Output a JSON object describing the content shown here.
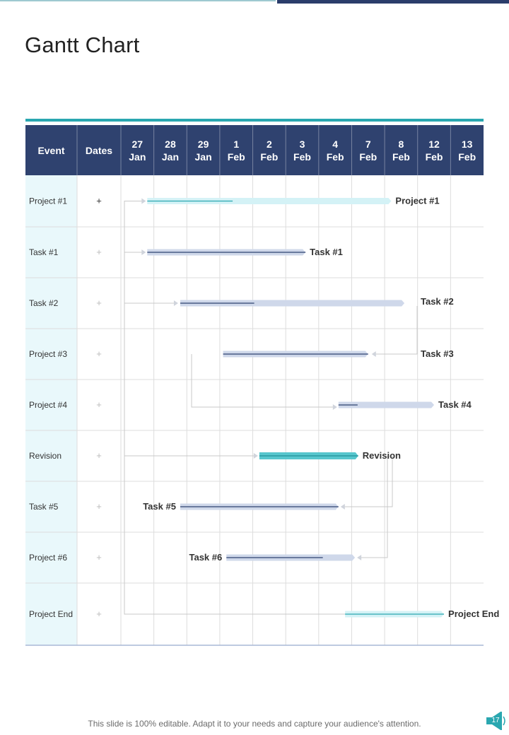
{
  "page": {
    "title": "Gantt Chart",
    "footer": "This slide is 100% editable. Adapt it to your needs and capture your audience's attention.",
    "page_number": "17"
  },
  "colors": {
    "header_bg": "#2f426f",
    "event_col_bg": "#e9f8fb",
    "teal_accent": "#2aa7b0",
    "light_bar": "#cfd8ea",
    "cyan_bar": "#d4f2f6",
    "revision_bar": "#57c6cd",
    "progress_line": "#2f426f",
    "connector": "#c8c8c8"
  },
  "chart_data": {
    "type": "table",
    "subtype": "gantt",
    "title": "Gantt Chart",
    "header": {
      "event": "Event",
      "dates": "Dates"
    },
    "columns": [
      {
        "day": "27",
        "month": "Jan"
      },
      {
        "day": "28",
        "month": "Jan"
      },
      {
        "day": "29",
        "month": "Jan"
      },
      {
        "day": "1",
        "month": "Feb"
      },
      {
        "day": "2",
        "month": "Feb"
      },
      {
        "day": "3",
        "month": "Feb"
      },
      {
        "day": "4",
        "month": "Feb"
      },
      {
        "day": "7",
        "month": "Feb"
      },
      {
        "day": "8",
        "month": "Feb"
      },
      {
        "day": "12",
        "month": "Feb"
      },
      {
        "day": "13",
        "month": "Feb"
      }
    ],
    "rows": [
      {
        "event": "Project #1",
        "date_mark": "+",
        "label": "Project #1",
        "label_side": "right",
        "start": 0.8,
        "end": 8.2,
        "progress": 0.35,
        "style": "cyan"
      },
      {
        "event": "Task #1",
        "date_mark": "+",
        "label": "Task #1",
        "label_side": "right",
        "start": 0.8,
        "end": 5.6,
        "progress": 1.0,
        "style": "light"
      },
      {
        "event": "Task #2",
        "date_mark": "+",
        "label": "Task #2",
        "label_side": "right",
        "start": 1.8,
        "end": 8.6,
        "progress": 0.33,
        "style": "light"
      },
      {
        "event": "Project #3",
        "date_mark": "+",
        "label": "Task #3",
        "label_side": "right",
        "start": 3.1,
        "end": 7.5,
        "progress": 1.0,
        "style": "light"
      },
      {
        "event": "Project #4",
        "date_mark": "+",
        "label": "Task #4",
        "label_side": "right",
        "start": 6.6,
        "end": 9.5,
        "progress": 0.2,
        "style": "light"
      },
      {
        "event": "Revision",
        "date_mark": "+",
        "label": "Revision",
        "label_side": "right",
        "start": 4.2,
        "end": 7.2,
        "progress": 1.0,
        "style": "revision"
      },
      {
        "event": "Task #5",
        "date_mark": "+",
        "label": "Task #5",
        "label_side": "left",
        "start": 1.8,
        "end": 6.6,
        "progress": 1.0,
        "style": "light"
      },
      {
        "event": "Project #6",
        "date_mark": "+",
        "label": "Task #6",
        "label_side": "left",
        "start": 3.2,
        "end": 7.1,
        "progress": 0.75,
        "style": "light"
      },
      {
        "event": "Project End",
        "date_mark": "+",
        "label": "Project End",
        "label_side": "right",
        "start": 6.8,
        "end": 9.8,
        "progress": 1.0,
        "style": "cyan"
      }
    ]
  }
}
